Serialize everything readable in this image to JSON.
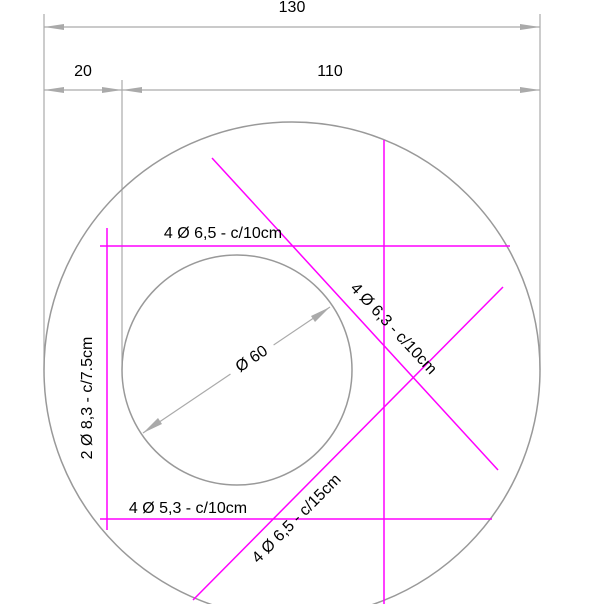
{
  "dimensions": {
    "total": "130",
    "left": "20",
    "right": "110"
  },
  "inner_circle": {
    "label": "Ø 60"
  },
  "rebars": [
    {
      "label": "4 Ø 6,5 - c/10cm"
    },
    {
      "label": "4 Ø 6,3 - c/10cm"
    },
    {
      "label": "2 Ø 8,3 - c/7.5cm"
    },
    {
      "label": "4 Ø 5,3 - c/10cm"
    },
    {
      "label": "4 Ø 6,5 - c/15cm"
    }
  ]
}
